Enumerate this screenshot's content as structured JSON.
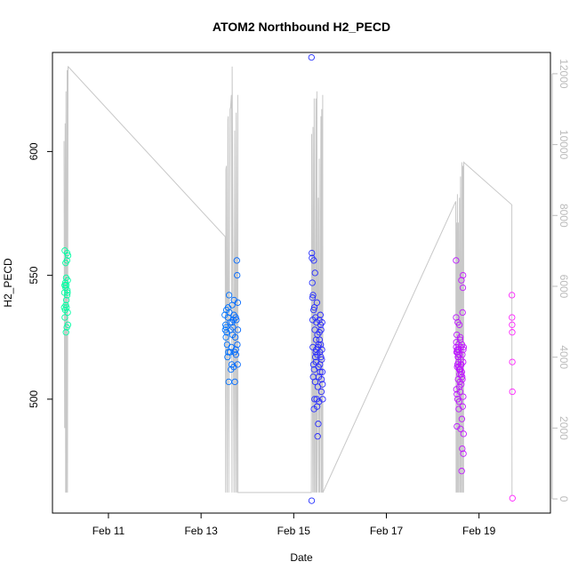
{
  "chart_data": {
    "type": "scatter",
    "title": "ATOM2 Northbound H2_PECD",
    "xlabel": "Date",
    "ylabel": "H2_PECD",
    "x_unit": "date",
    "xlim": [
      "2023-02-09T19:00",
      "2023-02-20T13:00"
    ],
    "ylim": [
      454,
      640
    ],
    "y2lim": [
      -400,
      12600
    ],
    "x_ticks": [
      {
        "value": "2023-02-11T00:00",
        "label": "Feb 11"
      },
      {
        "value": "2023-02-13T00:00",
        "label": "Feb 13"
      },
      {
        "value": "2023-02-15T00:00",
        "label": "Feb 15"
      },
      {
        "value": "2023-02-17T00:00",
        "label": "Feb 17"
      },
      {
        "value": "2023-02-19T00:00",
        "label": "Feb 19"
      }
    ],
    "y_ticks": [
      {
        "value": 500,
        "label": "500"
      },
      {
        "value": 550,
        "label": "550"
      },
      {
        "value": 600,
        "label": "600"
      }
    ],
    "y2_ticks": [
      {
        "value": 0,
        "label": "0"
      },
      {
        "value": 2000,
        "label": "2000"
      },
      {
        "value": 4000,
        "label": "4000"
      },
      {
        "value": 6000,
        "label": "6000"
      },
      {
        "value": 8000,
        "label": "8000"
      },
      {
        "value": 10000,
        "label": "10000"
      },
      {
        "value": 12000,
        "label": "12000"
      }
    ],
    "grid": false,
    "colors": {
      "points_gradient": [
        "#00ffa0",
        "#00c8ff",
        "#0060ff",
        "#3020ff",
        "#9010ff",
        "#ff20ff"
      ],
      "secondary_line": "#c8c8c8",
      "axis": "#000000",
      "secondary_axis_text": "#bbbbbb"
    },
    "secondary_series": {
      "type": "line",
      "axis": "right",
      "x": [
        "2023-02-10T01:00",
        "2023-02-10T01:18",
        "2023-02-10T01:36",
        "2023-02-10T01:48",
        "2023-02-10T02:00",
        "2023-02-10T02:18",
        "2023-02-10T02:36",
        "2023-02-10T02:48",
        "2023-02-10T03:05",
        "2023-02-10T03:06",
        "2023-02-13T12:30",
        "2023-02-13T12:42",
        "2023-02-13T12:54",
        "2023-02-13T13:06",
        "2023-02-13T13:30",
        "2023-02-13T13:54",
        "2023-02-13T14:06",
        "2023-02-13T14:18",
        "2023-02-13T15:00",
        "2023-02-13T15:18",
        "2023-02-13T15:42",
        "2023-02-13T16:00",
        "2023-02-13T16:06",
        "2023-02-13T17:06",
        "2023-02-13T17:24",
        "2023-02-13T17:54",
        "2023-02-13T18:12",
        "2023-02-13T18:30",
        "2023-02-13T19:00",
        "2023-02-13T19:06",
        "2023-02-15T09:06",
        "2023-02-15T09:18",
        "2023-02-15T09:54",
        "2023-02-15T10:00",
        "2023-02-15T10:30",
        "2023-02-15T10:36",
        "2023-02-15T11:00",
        "2023-02-15T11:30",
        "2023-02-15T11:36",
        "2023-02-15T12:00",
        "2023-02-15T12:06",
        "2023-02-15T12:42",
        "2023-02-15T13:00",
        "2023-02-15T13:12",
        "2023-02-15T13:24",
        "2023-02-15T14:06",
        "2023-02-15T14:12",
        "2023-02-15T14:30",
        "2023-02-15T14:36",
        "2023-02-15T15:00",
        "2023-02-15T15:06",
        "2023-02-18T12:00",
        "2023-02-18T12:06",
        "2023-02-18T12:18",
        "2023-02-18T12:36",
        "2023-02-18T12:48",
        "2023-02-18T13:06",
        "2023-02-18T13:18",
        "2023-02-18T13:36",
        "2023-02-18T13:54",
        "2023-02-18T14:12",
        "2023-02-18T14:24",
        "2023-02-18T14:42",
        "2023-02-18T15:06",
        "2023-02-18T15:18",
        "2023-02-18T15:30",
        "2023-02-18T15:36",
        "2023-02-18T15:48",
        "2023-02-18T16:00",
        "2023-02-18T16:06",
        "2023-02-19T17:00",
        "2023-02-19T17:03",
        "2023-02-19T17:06"
      ],
      "y": [
        10100,
        2000,
        10600,
        180,
        11500,
        180,
        12100,
        180,
        12200,
        12200,
        7400,
        180,
        9300,
        9400,
        180,
        10700,
        10800,
        180,
        11000,
        11050,
        11400,
        180,
        12200,
        180,
        10400,
        180,
        10900,
        180,
        11400,
        180,
        180,
        10300,
        180,
        10500,
        180,
        11300,
        180,
        11300,
        180,
        11500,
        180,
        8500,
        180,
        9600,
        180,
        10800,
        180,
        11000,
        180,
        11400,
        180,
        8400,
        180,
        7800,
        180,
        8600,
        180,
        7800,
        180,
        8500,
        180,
        9100,
        180,
        9500,
        180,
        9400,
        180,
        9400,
        180,
        9500,
        8300,
        2000,
        100
      ]
    },
    "series": [
      {
        "x": [
          "2023-02-10T01:06",
          "2023-02-10T01:12",
          "2023-02-10T01:18",
          "2023-02-10T01:24",
          "2023-02-10T01:30",
          "2023-02-10T01:36",
          "2023-02-10T01:42",
          "2023-02-10T01:48",
          "2023-02-10T01:54",
          "2023-02-10T02:00",
          "2023-02-10T02:06",
          "2023-02-10T02:12",
          "2023-02-10T02:18",
          "2023-02-10T02:24",
          "2023-02-10T02:30",
          "2023-02-10T02:36",
          "2023-02-10T02:42",
          "2023-02-10T02:48",
          "2023-02-10T02:54",
          "2023-02-10T03:00",
          "2023-02-10T01:24",
          "2023-02-10T01:48",
          "2023-02-10T02:12",
          "2023-02-10T02:36",
          "2023-02-10T02:54",
          "2023-02-10T03:03"
        ],
        "y": [
          537,
          543,
          546,
          533,
          546,
          536,
          547,
          545,
          538,
          527,
          549,
          540,
          537,
          529,
          556,
          559,
          544,
          543,
          548,
          530,
          560,
          555,
          546,
          542,
          535,
          558
        ]
      },
      {
        "x": [
          "2023-02-13T12:18",
          "2023-02-13T12:30",
          "2023-02-13T12:42",
          "2023-02-13T12:54",
          "2023-02-13T13:06",
          "2023-02-13T13:18",
          "2023-02-13T13:30",
          "2023-02-13T13:42",
          "2023-02-13T13:54",
          "2023-02-13T14:06",
          "2023-02-13T14:18",
          "2023-02-13T14:30",
          "2023-02-13T14:42",
          "2023-02-13T14:54",
          "2023-02-13T15:06",
          "2023-02-13T15:18",
          "2023-02-13T15:30",
          "2023-02-13T15:42",
          "2023-02-13T15:54",
          "2023-02-13T16:06",
          "2023-02-13T16:18",
          "2023-02-13T16:30",
          "2023-02-13T16:42",
          "2023-02-13T16:54",
          "2023-02-13T17:06",
          "2023-02-13T17:18",
          "2023-02-13T17:30",
          "2023-02-13T17:42",
          "2023-02-13T17:54",
          "2023-02-13T18:06",
          "2023-02-13T18:18",
          "2023-02-13T18:30",
          "2023-02-13T18:42",
          "2023-02-13T18:54",
          "2023-02-13T19:00",
          "2023-02-13T13:00",
          "2023-02-13T14:00",
          "2023-02-13T15:00",
          "2023-02-13T16:00",
          "2023-02-13T17:00",
          "2023-02-13T18:00",
          "2023-02-13T18:48",
          "2023-02-13T19:03"
        ],
        "y": [
          534,
          528,
          530,
          525,
          536,
          527,
          522,
          517,
          533,
          519,
          507,
          542,
          535,
          519,
          531,
          528,
          512,
          521,
          514,
          538,
          526,
          529,
          532,
          513,
          540,
          519,
          507,
          525,
          533,
          518,
          532,
          556,
          550,
          514,
          539,
          529,
          537,
          519,
          531,
          534,
          520,
          522,
          528
        ]
      },
      {
        "x": [
          "2023-02-15T09:12",
          "2023-02-15T09:18",
          "2023-02-15T09:24",
          "2023-02-15T09:30",
          "2023-02-15T09:36",
          "2023-02-15T09:42",
          "2023-02-15T09:48",
          "2023-02-15T09:54",
          "2023-02-15T10:00",
          "2023-02-15T10:06",
          "2023-02-15T10:12",
          "2023-02-15T10:18",
          "2023-02-15T10:24",
          "2023-02-15T10:30",
          "2023-02-15T10:36",
          "2023-02-15T10:42",
          "2023-02-15T10:48",
          "2023-02-15T10:54",
          "2023-02-15T11:00",
          "2023-02-15T11:06",
          "2023-02-15T11:12",
          "2023-02-15T11:18",
          "2023-02-15T11:24",
          "2023-02-15T11:30",
          "2023-02-15T11:36",
          "2023-02-15T11:42",
          "2023-02-15T11:48",
          "2023-02-15T11:54",
          "2023-02-15T12:00",
          "2023-02-15T12:06",
          "2023-02-15T12:12",
          "2023-02-15T12:18",
          "2023-02-15T12:24",
          "2023-02-15T12:30",
          "2023-02-15T12:36",
          "2023-02-15T12:42",
          "2023-02-15T12:48",
          "2023-02-15T12:54",
          "2023-02-15T13:00",
          "2023-02-15T13:06",
          "2023-02-15T13:12",
          "2023-02-15T13:18",
          "2023-02-15T13:24",
          "2023-02-15T13:30",
          "2023-02-15T13:36",
          "2023-02-15T13:42",
          "2023-02-15T13:48",
          "2023-02-15T13:54",
          "2023-02-15T14:00",
          "2023-02-15T14:06",
          "2023-02-15T14:12",
          "2023-02-15T14:18",
          "2023-02-15T14:24",
          "2023-02-15T14:30",
          "2023-02-15T14:36",
          "2023-02-15T14:42",
          "2023-02-15T14:48",
          "2023-02-15T14:54",
          "2023-02-15T15:00"
        ],
        "y": [
          638,
          459,
          559,
          557,
          547,
          541,
          532,
          521,
          542,
          509,
          514,
          536,
          556,
          496,
          512,
          537,
          500,
          528,
          551,
          507,
          517,
          533,
          519,
          515,
          524,
          520,
          531,
          500,
          539,
          497,
          518,
          526,
          485,
          505,
          521,
          490,
          513,
          522,
          509,
          499,
          532,
          527,
          524,
          519,
          514,
          511,
          534,
          530,
          522,
          517,
          528,
          503,
          508,
          516,
          520,
          531,
          511,
          506,
          500
        ]
      },
      {
        "x": [
          "2023-02-18T12:06",
          "2023-02-18T12:12",
          "2023-02-18T12:18",
          "2023-02-18T12:24",
          "2023-02-18T12:30",
          "2023-02-18T12:36",
          "2023-02-18T12:42",
          "2023-02-18T12:48",
          "2023-02-18T12:54",
          "2023-02-18T13:00",
          "2023-02-18T13:06",
          "2023-02-18T13:12",
          "2023-02-18T13:18",
          "2023-02-18T13:24",
          "2023-02-18T13:30",
          "2023-02-18T13:36",
          "2023-02-18T13:42",
          "2023-02-18T13:48",
          "2023-02-18T13:54",
          "2023-02-18T14:00",
          "2023-02-18T14:06",
          "2023-02-18T14:12",
          "2023-02-18T14:18",
          "2023-02-18T14:24",
          "2023-02-18T14:30",
          "2023-02-18T14:36",
          "2023-02-18T14:42",
          "2023-02-18T14:48",
          "2023-02-18T14:54",
          "2023-02-18T15:00",
          "2023-02-18T15:06",
          "2023-02-18T15:12",
          "2023-02-18T15:18",
          "2023-02-18T15:24",
          "2023-02-18T15:30",
          "2023-02-18T15:36",
          "2023-02-18T15:42",
          "2023-02-18T15:48",
          "2023-02-18T15:54",
          "2023-02-18T16:00",
          "2023-02-18T12:15",
          "2023-02-18T12:45",
          "2023-02-18T13:15",
          "2023-02-18T13:45",
          "2023-02-18T14:15",
          "2023-02-18T14:45",
          "2023-02-18T15:15",
          "2023-02-18T15:45",
          "2023-02-18T12:33",
          "2023-02-18T13:03",
          "2023-02-18T13:33",
          "2023-02-18T14:03",
          "2023-02-18T14:33",
          "2023-02-18T15:03",
          "2023-02-18T15:33",
          "2023-02-18T16:03",
          "2023-02-18T12:09",
          "2023-02-18T12:51",
          "2023-02-18T13:21",
          "2023-02-18T13:51",
          "2023-02-18T14:21",
          "2023-02-18T14:51",
          "2023-02-18T15:21",
          "2023-02-18T15:51"
        ],
        "y": [
          556,
          521,
          504,
          519,
          526,
          489,
          513,
          520,
          500,
          531,
          517,
          508,
          522,
          515,
          496,
          520,
          499,
          530,
          510,
          518,
          512,
          503,
          525,
          488,
          514,
          521,
          510,
          506,
          548,
          471,
          492,
          522,
          480,
          508,
          535,
          545,
          550,
          501,
          478,
          486,
          523,
          519,
          517,
          512,
          524,
          510,
          509,
          515,
          502,
          520,
          513,
          507,
          516,
          511,
          497,
          521,
          533,
          514,
          518,
          505,
          512,
          514,
          518,
          520
        ]
      },
      {
        "x": [
          "2023-02-19T17:03",
          "2023-02-19T17:06",
          "2023-02-19T17:09",
          "2023-02-19T17:12",
          "2023-02-19T17:15",
          "2023-02-19T17:18",
          "2023-02-19T17:21"
        ],
        "y": [
          542,
          533,
          530,
          527,
          515,
          503,
          460
        ]
      }
    ]
  }
}
